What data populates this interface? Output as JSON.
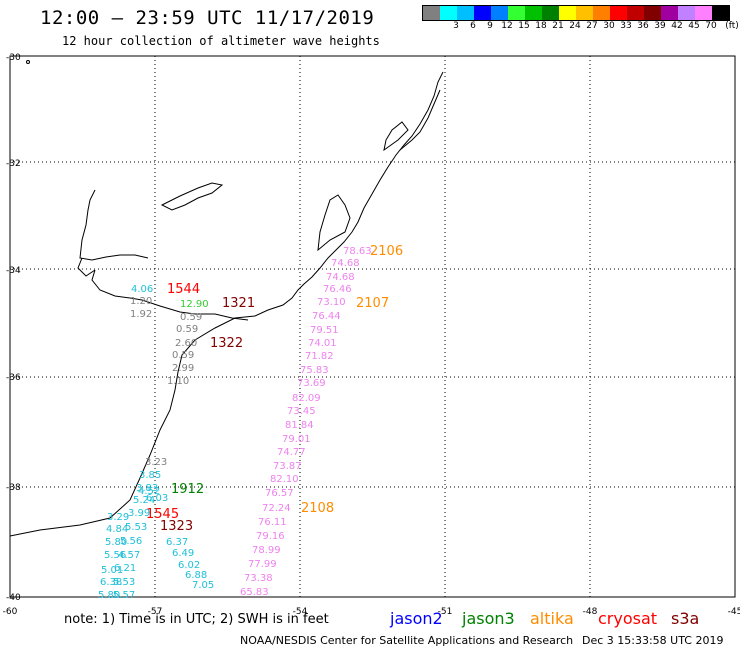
{
  "header": {
    "title": "12:00 – 23:59 UTC 11/17/2019",
    "subtitle": "12 hour collection of altimeter wave heights"
  },
  "scale": {
    "colors": [
      "#808080",
      "#00ffff",
      "#00bfff",
      "#0000ff",
      "#0080ff",
      "#33ff33",
      "#00c000",
      "#008000",
      "#ffff00",
      "#ffc000",
      "#ff8000",
      "#ff0000",
      "#c00000",
      "#800000",
      "#a000a0",
      "#c080ff",
      "#ff80ff",
      "#000000"
    ],
    "labels": [
      "3",
      "6",
      "9",
      "12",
      "15",
      "18",
      "21",
      "24",
      "27",
      "30",
      "33",
      "36",
      "39",
      "42",
      "45",
      "70"
    ],
    "unit": "(ft)"
  },
  "axes": {
    "lat_labels": [
      "-30",
      "-32",
      "-34",
      "-36",
      "-38",
      "-40"
    ],
    "lon_labels": [
      "-60",
      "-57",
      "-54",
      "-51",
      "-48",
      "-45"
    ]
  },
  "tracks": {
    "altika": {
      "color": "#ff8c00",
      "times": [
        "2106",
        "2107",
        "2108"
      ],
      "values": [
        "78.63",
        "74.68",
        "74.68",
        "76.46",
        "73.10",
        "76.44",
        "79.51",
        "74.01",
        "71.82",
        "75.83",
        "73.69",
        "82.09",
        "73.45",
        "81.84",
        "79.01",
        "74.77",
        "73.87",
        "82.10",
        "76.57",
        "72.24",
        "76.11",
        "79.16",
        "78.99",
        "77.99",
        "73.38",
        "65.83"
      ]
    },
    "cryosat": {
      "color": "#ff0000",
      "times": [
        "1544",
        "1545"
      ]
    },
    "s3a": {
      "color": "#800000",
      "times": [
        "1321",
        "1322",
        "1323"
      ]
    },
    "jason3": {
      "color": "#008000",
      "times": [
        "1912"
      ],
      "values": [
        "12.90"
      ]
    },
    "grey": {
      "color": "#808080",
      "values": [
        "1.20",
        "1.92",
        "0.59",
        "0.59",
        "2.60",
        "0.59",
        "2.99",
        "1.10",
        "3.23"
      ]
    },
    "cyan": {
      "color": "#00bfbf",
      "values": [
        "4.06",
        "3.85",
        "3.83",
        "4.52",
        "5.24",
        "6.03",
        "3.99",
        "3.29",
        "4.84",
        "5.53",
        "5.80",
        "5.56",
        "5.56",
        "4.57",
        "5.01",
        "6.21",
        "6.38",
        "5.53",
        "5.80",
        "5.57",
        "6.37",
        "6.49",
        "6.02",
        "6.88",
        "7.05"
      ]
    }
  },
  "footer": {
    "note": "note:  1) Time is in UTC;  2) SWH is in feet",
    "legend": [
      {
        "label": "jason2",
        "color": "#0000ff"
      },
      {
        "label": "jason3",
        "color": "#008000"
      },
      {
        "label": "altika",
        "color": "#ff8c00"
      },
      {
        "label": "cryosat",
        "color": "#ff0000"
      },
      {
        "label": "s3a",
        "color": "#800000"
      }
    ],
    "credit": "NOAA/NESDIS Center for Satellite Applications and Research",
    "date": "Dec  3 15:33:58 UTC 2019"
  }
}
